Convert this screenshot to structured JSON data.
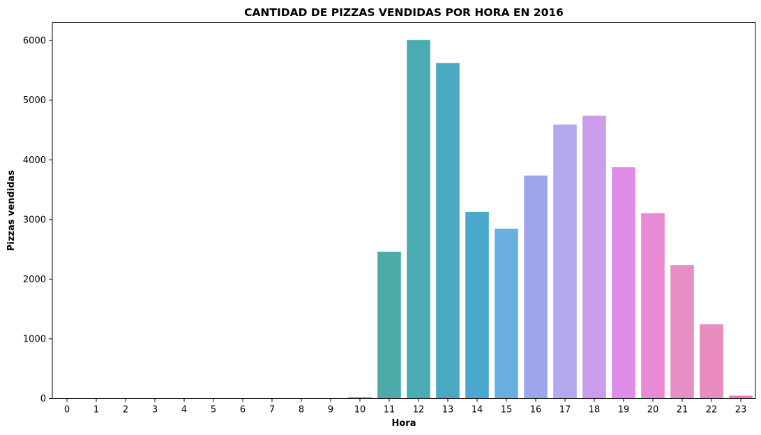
{
  "chart_data": {
    "type": "bar",
    "title": "CANTIDAD DE PIZZAS VENDIDAS POR HORA EN 2016",
    "xlabel": "Hora",
    "ylabel": "Pizzas vendidas",
    "categories": [
      "0",
      "1",
      "2",
      "3",
      "4",
      "5",
      "6",
      "7",
      "8",
      "9",
      "10",
      "11",
      "12",
      "13",
      "14",
      "15",
      "16",
      "17",
      "18",
      "19",
      "20",
      "21",
      "22",
      "23"
    ],
    "values": [
      0,
      0,
      0,
      0,
      0,
      0,
      0,
      0,
      0,
      4,
      17,
      2459,
      6011,
      5624,
      3128,
      2846,
      3737,
      4592,
      4741,
      3877,
      3105,
      2237,
      1242,
      47
    ],
    "ylim": [
      0,
      6300
    ],
    "yticks": [
      0,
      1000,
      2000,
      3000,
      4000,
      5000,
      6000
    ],
    "grid": false,
    "colors": [
      "#f77189",
      "#f77332",
      "#d78b31",
      "#bb9832",
      "#a69f31",
      "#8ea531",
      "#62af31",
      "#32b15b",
      "#34ad80",
      "#35ab94",
      "#36a9a3",
      "#4aaa94",
      "#4aaba8",
      "#4aabb2",
      "#48a9c0",
      "#4aa8cc",
      "#69aee0",
      "#9ea5ea",
      "#b4a8ec",
      "#c99dea",
      "#de8de9",
      "#e98ad5",
      "#e78fc5",
      "#f077bd"
    ],
    "palette": [
      "#f77189",
      "#e18632",
      "#c29431",
      "#a99c31",
      "#8ea531",
      "#62af31",
      "#32b15b",
      "#34ad80",
      "#35ab94",
      "#36a9a3",
      "#4aa998",
      "#4aaba8",
      "#4aabb2",
      "#48a9c0",
      "#4aa8cc",
      "#69aee0",
      "#9ea5ea",
      "#b4a8ec",
      "#c99dea",
      "#de8de9",
      "#e98ad5",
      "#e78fc5",
      "#e88bbd",
      "#f077bd"
    ]
  }
}
